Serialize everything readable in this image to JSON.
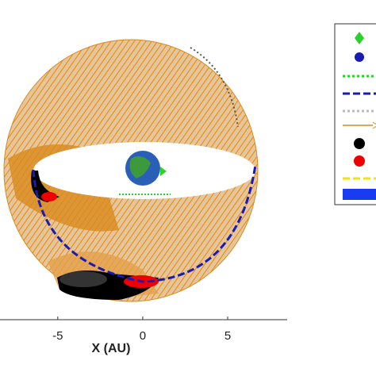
{
  "chart_data": {
    "type": "line",
    "xlabel": "X (AU)",
    "xlim": [
      -8.4,
      8.5
    ],
    "xticks": [
      -5,
      0,
      5
    ]
  }
}
